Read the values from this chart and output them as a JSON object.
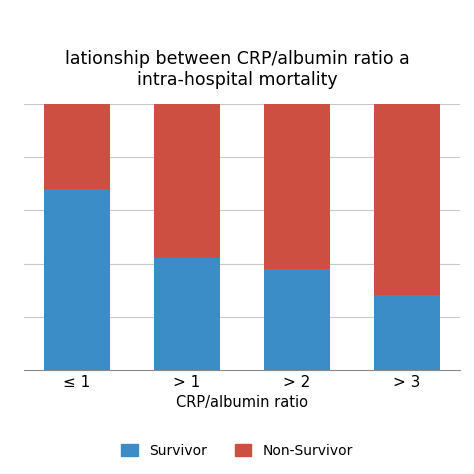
{
  "categories": [
    "≤ 1",
    "> 1",
    "> 2",
    "> 3"
  ],
  "survivor_values": [
    68,
    42,
    38,
    28
  ],
  "nonsurvivor_values": [
    32,
    58,
    62,
    72
  ],
  "survivor_color": "#3B8DC8",
  "nonsurvivor_color": "#CD4F42",
  "title_line1": "lationship between CRP/albumin ratio a",
  "title_line2": "intra-hospital mortality",
  "xlabel": "CRP/albumin ratio",
  "legend_survivor": "Survivor",
  "legend_nonsurvivor": "Non-Survivor",
  "ylim": [
    0,
    100
  ],
  "bar_width": 0.6,
  "background_color": "#ffffff",
  "grid_color": "#c8c8c8",
  "title_fontsize": 12.5,
  "axis_fontsize": 10.5,
  "tick_fontsize": 11,
  "legend_fontsize": 10
}
